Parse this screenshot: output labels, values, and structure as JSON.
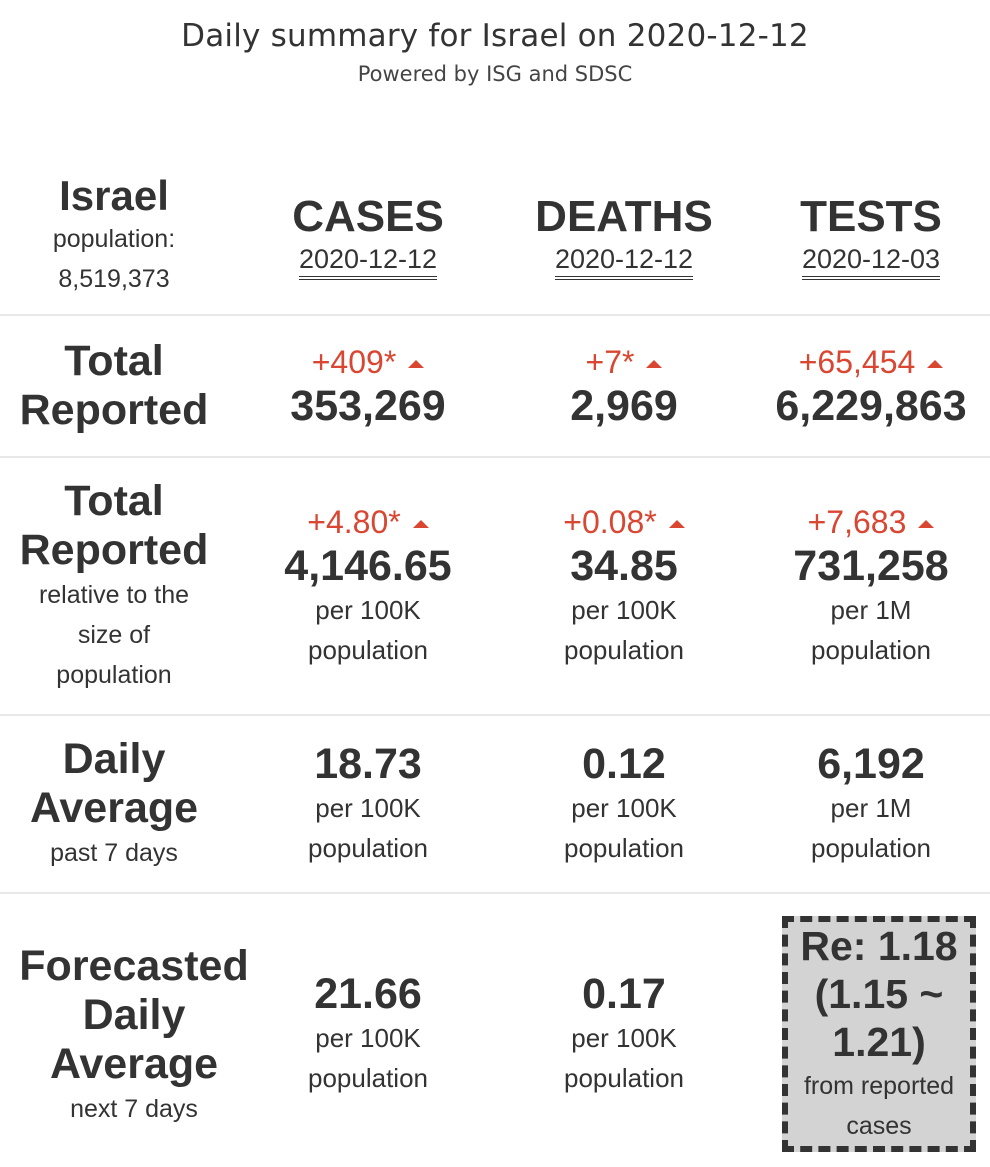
{
  "header": {
    "title": "Daily summary for Israel on 2020-12-12",
    "subtitle": "Powered by ISG and SDSC"
  },
  "country": {
    "name": "Israel",
    "population_label": "population:",
    "population_value": "8,519,373"
  },
  "columns": [
    {
      "title": "CASES",
      "date": "2020-12-12"
    },
    {
      "title": "DEATHS",
      "date": "2020-12-12"
    },
    {
      "title": "TESTS",
      "date": "2020-12-03"
    }
  ],
  "total_reported": {
    "label_line1": "Total",
    "label_line2": "Reported",
    "cells": [
      {
        "delta": "+409*",
        "value": "353,269"
      },
      {
        "delta": "+7*",
        "value": "2,969"
      },
      {
        "delta": "+65,454",
        "value": "6,229,863"
      }
    ]
  },
  "relative": {
    "label_line1": "Total",
    "label_line2": "Reported",
    "sub_line1": "relative to the",
    "sub_line2": "size of",
    "sub_line3": "population",
    "cells": [
      {
        "delta": "+4.80*",
        "value": "4,146.65",
        "unit1": "per 100K",
        "unit2": "population"
      },
      {
        "delta": "+0.08*",
        "value": "34.85",
        "unit1": "per 100K",
        "unit2": "population"
      },
      {
        "delta": "+7,683",
        "value": "731,258",
        "unit1": "per 1M",
        "unit2": "population"
      }
    ]
  },
  "daily_average": {
    "label_line1": "Daily",
    "label_line2": "Average",
    "sub": "past 7 days",
    "cells": [
      {
        "value": "18.73",
        "unit1": "per 100K",
        "unit2": "population"
      },
      {
        "value": "0.12",
        "unit1": "per 100K",
        "unit2": "population"
      },
      {
        "value": "6,192",
        "unit1": "per 1M",
        "unit2": "population"
      }
    ]
  },
  "forecast": {
    "label_line1": "Forecasted",
    "label_line2": "Daily",
    "label_line3": "Average",
    "sub": "next 7 days",
    "cells": [
      {
        "value": "21.66",
        "unit1": "per 100K",
        "unit2": "population"
      },
      {
        "value": "0.17",
        "unit1": "per 100K",
        "unit2": "population"
      }
    ],
    "re": {
      "line1": "Re: 1.18",
      "line2": "(1.15 ~",
      "line3": "1.21)",
      "sub1": "from reported",
      "sub2": "cases"
    }
  },
  "colors": {
    "increase": "#d94632",
    "text": "#333333",
    "re_box_bg": "#d3d3d3"
  },
  "icons": {
    "increase": "triangle-up-icon"
  }
}
